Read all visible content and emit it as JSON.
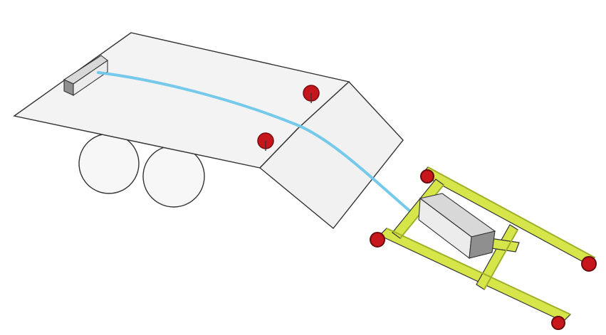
{
  "colors": {
    "background": "#ffffff",
    "outline": "#333333",
    "platform_fill": "#f3f3f3",
    "ramp_fill": "#f1f1f1",
    "wheel_fill": "#f7f7f7",
    "block_fill": "#d8d8d8",
    "block_shade": "#8f8f8f",
    "trajectory_line": "#6ec6ea",
    "pin_red": "#c4161c",
    "pin_dark": "#7a0a0e",
    "frame_yellow": "#d6e64a",
    "frame_yellow_shadow": "#9fb029",
    "wheel_red": "#c8161d",
    "wheel_red_dark": "#6d0a0d"
  }
}
